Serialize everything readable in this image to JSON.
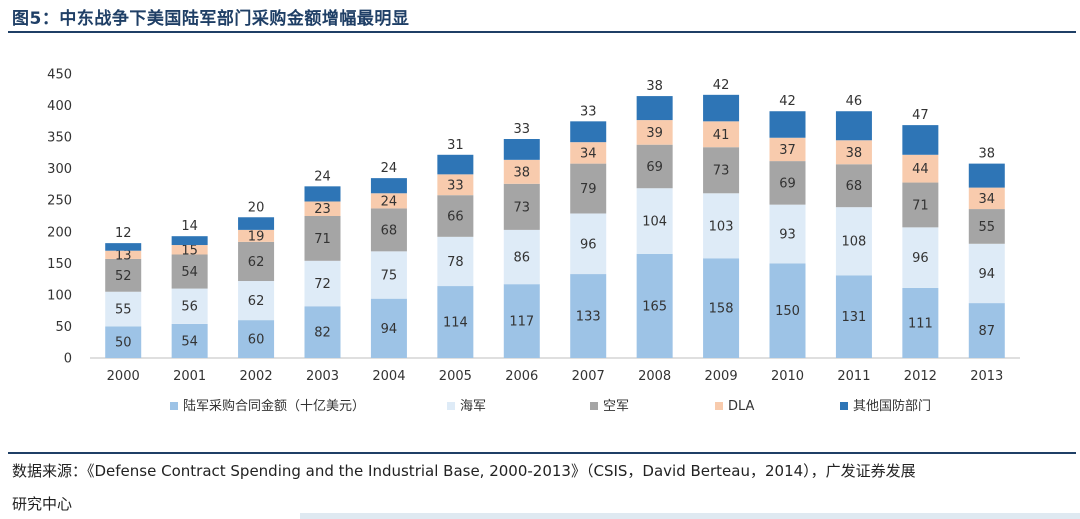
{
  "title": "图5：中东战争下美国陆军部门采购金额增幅最明显",
  "source_line1": "数据来源：《Defense Contract Spending and the Industrial Base, 2000-2013》（CSIS，David Berteau，2014），广发证券发展",
  "source_line2": "研究中心",
  "chart_data": {
    "type": "bar",
    "stacked": true,
    "title": "",
    "xlabel": "",
    "ylabel": "",
    "ylim": [
      0,
      450
    ],
    "yticks": [
      0,
      50,
      100,
      150,
      200,
      250,
      300,
      350,
      400,
      450
    ],
    "categories": [
      "2000",
      "2001",
      "2002",
      "2003",
      "2004",
      "2005",
      "2006",
      "2007",
      "2008",
      "2009",
      "2010",
      "2011",
      "2012",
      "2013"
    ],
    "series": [
      {
        "name": "陆军采购合同金额（十亿美元）",
        "color": "#9dc3e6",
        "label_color": "#333333",
        "values": [
          50,
          54,
          60,
          82,
          94,
          114,
          117,
          133,
          165,
          158,
          150,
          131,
          111,
          87
        ]
      },
      {
        "name": "海军",
        "color": "#deebf7",
        "label_color": "#333333",
        "values": [
          55,
          56,
          62,
          72,
          75,
          78,
          86,
          96,
          104,
          103,
          93,
          108,
          96,
          94
        ]
      },
      {
        "name": "空军",
        "color": "#a5a5a5",
        "label_color": "#333333",
        "values": [
          52,
          54,
          62,
          71,
          68,
          66,
          73,
          79,
          69,
          73,
          69,
          68,
          71,
          55
        ]
      },
      {
        "name": "DLA",
        "color": "#f8cbad",
        "label_color": "#333333",
        "values": [
          13,
          15,
          19,
          23,
          24,
          33,
          38,
          34,
          39,
          41,
          37,
          38,
          44,
          34
        ]
      },
      {
        "name": "其他国防部门",
        "color": "#2e75b6",
        "label_color": "#333333",
        "values": [
          12,
          14,
          20,
          24,
          24,
          31,
          33,
          33,
          38,
          42,
          42,
          46,
          47,
          38
        ]
      }
    ],
    "legend_position": "bottom",
    "grid": false
  }
}
